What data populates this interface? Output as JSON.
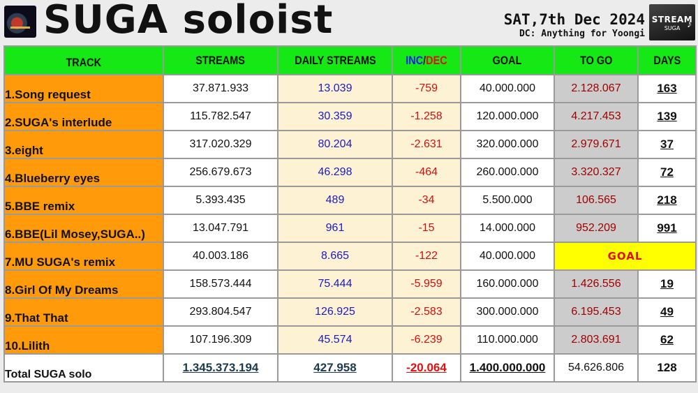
{
  "header": {
    "title": "SUGA soloist",
    "date": "SAT,7th Dec 2024",
    "credit": "DC: Anything for Yoongi",
    "logo_right": {
      "line1": "STREAM",
      "line2": "SUGA"
    }
  },
  "table": {
    "headers": {
      "track": "TRACK",
      "streams": "STREAMS",
      "daily": "DAILY STREAMS",
      "inc": "INC",
      "slash": "/",
      "dec": "DEC",
      "goal": "GOAL",
      "togo": "TO GO",
      "days": "DAYS"
    },
    "rows": [
      {
        "track": "1.Song request",
        "streams": "37.871.933",
        "daily": "13.039",
        "incdec": "-759",
        "goal": "40.000.000",
        "togo": "2.128.067",
        "days": "163"
      },
      {
        "track": "2.SUGA's interlude",
        "streams": "115.782.547",
        "daily": "30.359",
        "incdec": "-1.258",
        "goal": "120.000.000",
        "togo": "4.217.453",
        "days": "139"
      },
      {
        "track": "3.eight",
        "streams": "317.020.329",
        "daily": "80.204",
        "incdec": "-2.631",
        "goal": "320.000.000",
        "togo": "2.979.671",
        "days": "37"
      },
      {
        "track": "4.Blueberry eyes",
        "streams": "256.679.673",
        "daily": "46.298",
        "incdec": "-464",
        "goal": "260.000.000",
        "togo": "3.320.327",
        "days": "72"
      },
      {
        "track": "5.BBE remix",
        "streams": "5.393.435",
        "daily": "489",
        "incdec": "-34",
        "goal": "5.500.000",
        "togo": "106.565",
        "days": "218"
      },
      {
        "track": "6.BBE(Lil Mosey,SUGA..)",
        "streams": "13.047.791",
        "daily": "961",
        "incdec": "-15",
        "goal": "14.000.000",
        "togo": "952.209",
        "days": "991"
      },
      {
        "track": "7.MU SUGA's remix",
        "streams": "40.003.186",
        "daily": "8.665",
        "incdec": "-122",
        "goal": "40.000.000",
        "togo": "",
        "days": ""
      },
      {
        "track": "8.Girl Of My Dreams",
        "streams": "158.573.444",
        "daily": "75.444",
        "incdec": "-5.959",
        "goal": "160.000.000",
        "togo": "1.426.556",
        "days": "19"
      },
      {
        "track": "9.That That",
        "streams": "293.804.547",
        "daily": "126.925",
        "incdec": "-2.583",
        "goal": "300.000.000",
        "togo": "6.195.453",
        "days": "49"
      },
      {
        "track": "10.Lilith",
        "streams": "107.196.309",
        "daily": "45.574",
        "incdec": "-6.239",
        "goal": "110.000.000",
        "togo": "2.803.691",
        "days": "62"
      }
    ],
    "goal_reached_label": "GOAL",
    "total": {
      "label": "Total SUGA solo",
      "streams": "1.345.373.194",
      "daily": "427.958",
      "incdec": "-20.064",
      "goal": "1.400.000.000",
      "togo": "54.626.806",
      "days": "128"
    }
  },
  "colors": {
    "header_green": "#16e816",
    "track_orange": "#ff9a0a",
    "daily_blue": "#1a1ac8",
    "decrease_red": "#d01010",
    "goal_yellow": "#ffff00",
    "togo_gray": "#cccccc",
    "pale_cream": "#fdf3d4"
  }
}
